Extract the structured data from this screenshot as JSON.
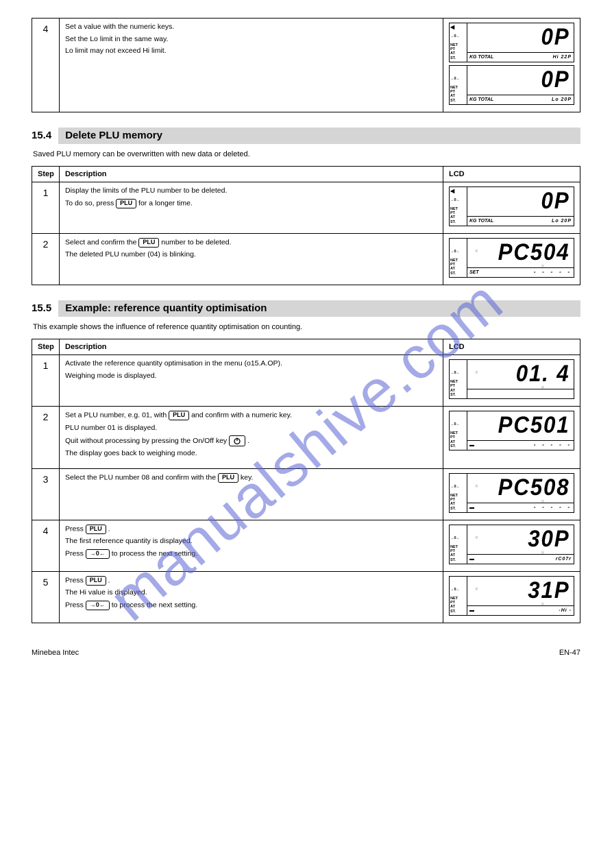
{
  "watermark": "manualshive.com",
  "page_header": "",
  "table1": {
    "row": {
      "num": "4",
      "paras": [
        "Set a value with the numeric keys.",
        "Set the Lo limit in the same way.",
        "Lo limit may not exceed Hi limit."
      ],
      "lcd": [
        {
          "big": "0P",
          "subLeft": "KG TOTAL",
          "subRight": "Hi   22P",
          "arrows": [
            "◀",
            "",
            "NET",
            "PT",
            "AT",
            "ST."
          ]
        },
        {
          "big": "0P",
          "subLeft": "KG TOTAL",
          "subRight": "Lo   20P",
          "arrows": [
            "",
            "",
            "NET",
            "PT",
            "AT",
            "ST."
          ]
        }
      ]
    }
  },
  "section2": {
    "num": "15.4",
    "title": "Delete PLU memory",
    "intro": "Saved PLU memory can be overwritten with new data or deleted.",
    "hdr": [
      "Step",
      "Description",
      "LCD"
    ],
    "rows": [
      {
        "num": "1",
        "paras_html": [
          "Display the limits of the PLU number to be deleted.",
          "To do so, press <KEY>PLU</KEY> for a longer time."
        ],
        "lcd": [
          {
            "big": "0P",
            "subLeft": "KG TOTAL",
            "subRight": "Lo   20P",
            "arrows": [
              "◀",
              "",
              "NET",
              "PT",
              "AT",
              "ST."
            ]
          }
        ]
      },
      {
        "num": "2",
        "paras_html": [
          "Select and confirm the <KEY>PLU</KEY> number to be deleted.",
          "The deleted PLU number (04) is blinking."
        ],
        "lcd": [
          {
            "big": "PC504",
            "subLeft": "SET",
            "subRight": "- - - - -",
            "arrows": [
              "",
              "",
              "NET",
              "PT",
              "AT",
              "ST."
            ],
            "spark": true
          }
        ]
      }
    ]
  },
  "section3": {
    "num": "15.5",
    "title": "Example: reference quantity optimisation",
    "intro": "This example shows the influence of reference quantity optimisation on counting.",
    "hdr": [
      "Step",
      "Description",
      "LCD"
    ],
    "rows": [
      {
        "num": "1",
        "paras_html": [
          "Activate the reference quantity optimisation in the menu (o15.A.OP).",
          "Weighing mode is displayed."
        ],
        "lcd": [
          {
            "big": "01.  4",
            "subLeft": "",
            "subRight": "",
            "arrows": [
              "",
              "",
              "NET",
              "PT",
              "AT",
              "ST."
            ],
            "spark": true
          }
        ]
      },
      {
        "num": "2",
        "paras_html": [
          "Set a PLU number, e.g. 01, with <KEY>PLU</KEY> and confirm with a numeric key.",
          "PLU number 01 is displayed.",
          "Quit without processing by pressing the On/Off key <KEY>PWR</KEY> .",
          "The display goes back to weighing mode."
        ],
        "lcd": [
          {
            "big": "PC501",
            "subLeft": "",
            "subRight": "- - - - -",
            "arrows": [
              "",
              "",
              "NET",
              "PT",
              "AT",
              "ST."
            ],
            "blinkLeft": true
          }
        ]
      },
      {
        "num": "3",
        "paras_html": [
          "Select the PLU number 08 and confirm with the <KEY>PLU</KEY> key."
        ],
        "lcd": [
          {
            "big": "PC508",
            "subLeft": "",
            "subRight": "- - - - -",
            "arrows": [
              "",
              "",
              "NET",
              "PT",
              "AT",
              "ST."
            ],
            "blinkLeft": true,
            "spark": true
          }
        ]
      },
      {
        "num": "4",
        "paras_html": [
          "Press <KEY>PLU</KEY> .",
          "The first reference quantity is displayed.",
          "Press <KEY>→0←</KEY> to process the next setting."
        ],
        "lcd": [
          {
            "big": "30P",
            "subLeft": "",
            "subRight": "rC07r",
            "arrows": [
              "",
              "",
              "NET",
              "PT",
              "AT",
              "ST."
            ],
            "blinkLeft": true,
            "spark": true
          }
        ]
      },
      {
        "num": "5",
        "paras_html": [
          "Press <KEY>PLU</KEY> .",
          "The Hi value is displayed.",
          "Press <KEY>→0←</KEY> to process the next setting."
        ],
        "lcd": [
          {
            "big": "31P",
            "subLeft": "",
            "subRight": "-Hi -",
            "arrows": [
              "",
              "",
              "NET",
              "PT",
              "AT",
              "ST."
            ],
            "blinkLeft": true,
            "spark": true
          }
        ]
      }
    ]
  },
  "footer": {
    "left": "Minebea Intec",
    "right": "EN-47"
  }
}
